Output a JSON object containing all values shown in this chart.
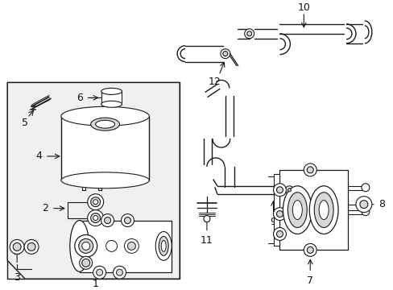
{
  "bg_color": "#ffffff",
  "line_color": "#1a1a1a",
  "fill_light": "#f0f0f0",
  "fill_med": "#d8d8d8",
  "font_size": 9,
  "label_color": "#111111"
}
